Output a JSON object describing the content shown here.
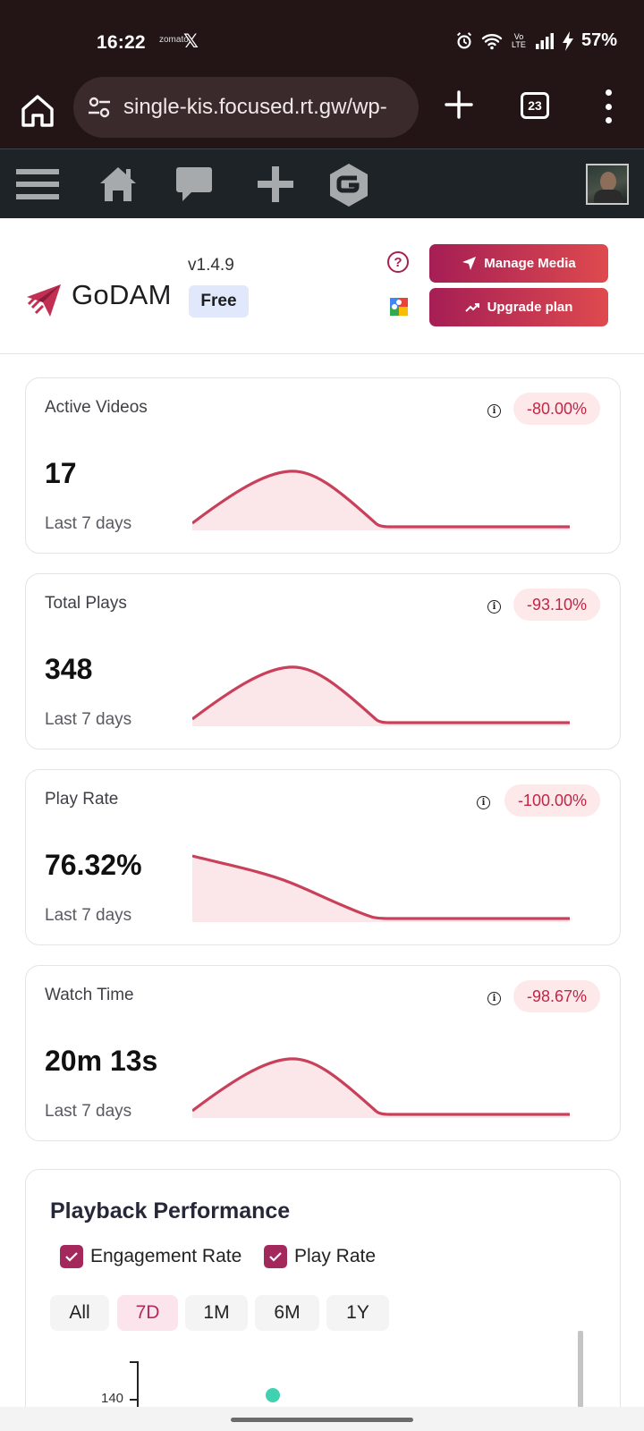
{
  "status_bar": {
    "time": "16:22",
    "small_text": "zomato",
    "x_glyph": "𝕏",
    "network": "Vo LTE",
    "battery_pct": "57%",
    "icons": [
      "alarm-icon",
      "wifi-icon",
      "signal-icon",
      "charging-icon"
    ]
  },
  "browser": {
    "url": "single-kis.focused.rt.gw/wp-",
    "tab_count": "23",
    "icons": [
      "home-icon",
      "site-settings-icon",
      "new-tab-icon",
      "tabs-icon",
      "more-icon"
    ]
  },
  "admin_bar": {
    "icons": [
      "menu-icon",
      "home-icon",
      "comments-icon",
      "new-content-icon",
      "godam-icon",
      "user-avatar"
    ]
  },
  "header": {
    "brand": "GoDAM",
    "version": "v1.4.9",
    "plan": "Free",
    "manage_media_label": "Manage Media",
    "upgrade_label": "Upgrade plan",
    "accent_gradient": [
      "#a51e55",
      "#de4a4e"
    ]
  },
  "stats": [
    {
      "label": "Active Videos",
      "value": "17",
      "period": "Last 7 days",
      "change": "-80.00%"
    },
    {
      "label": "Total Plays",
      "value": "348",
      "period": "Last 7 days",
      "change": "-93.10%"
    },
    {
      "label": "Play Rate",
      "value": "76.32%",
      "period": "Last 7 days",
      "change": "-100.00%"
    },
    {
      "label": "Watch Time",
      "value": "20m 13s",
      "period": "Last 7 days",
      "change": "-98.67%"
    }
  ],
  "performance": {
    "title": "Playback Performance",
    "legend": [
      {
        "label": "Engagement Rate",
        "checked": true
      },
      {
        "label": "Play Rate",
        "checked": true
      }
    ],
    "ranges": [
      "All",
      "7D",
      "1M",
      "6M",
      "1Y"
    ],
    "active_range": "7D",
    "visible_tick": "140",
    "colors": {
      "accent": "#a3285b",
      "series_dot": "#3fd1b0",
      "sparkline": "#c9405a"
    }
  }
}
